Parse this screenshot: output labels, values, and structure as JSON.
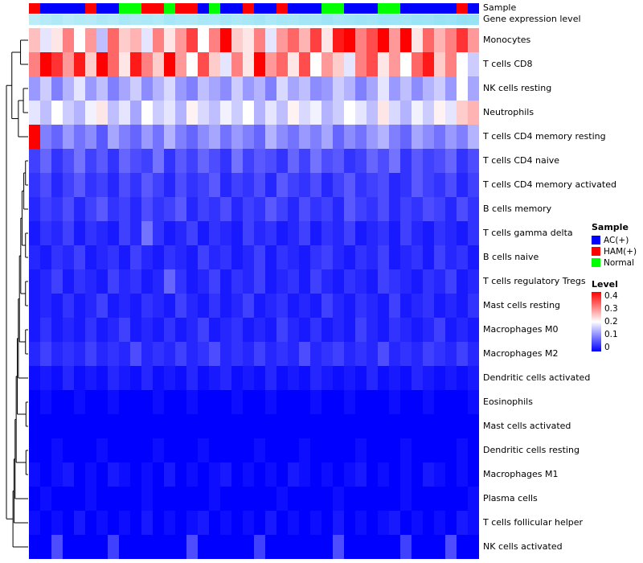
{
  "annotations": {
    "sample_label": "Sample",
    "gene_label": "Gene expression level",
    "gene_colormap": {
      "low": "#DFF6FD",
      "high": "#8ADEF4",
      "max": 0.5
    }
  },
  "legend": {
    "sample_title": "Sample",
    "sample_items": [
      {
        "label": "AC(+)",
        "color": "#0000FF"
      },
      {
        "label": "HAM(+)",
        "color": "#FF0000"
      },
      {
        "label": "Normal",
        "color": "#00FF00"
      }
    ],
    "level_title": "Level",
    "level_ticks": [
      "0.4",
      "0.3",
      "0.2",
      "0.1",
      "0"
    ],
    "level_colors": [
      "#FF0000",
      "#FFFFFF",
      "#0000FF"
    ]
  },
  "chart_data": {
    "type": "heatmap",
    "title": "",
    "rows": [
      "Monocytes",
      "T cells CD8",
      "NK cells resting",
      "Neutrophils",
      "T cells CD4 memory resting",
      "T cells CD4 naive",
      "T cells CD4 memory activated",
      "B cells memory",
      "T cells gamma delta",
      "B cells naive",
      "T cells regulatory Tregs",
      "Mast cells resting",
      "Macrophages M0",
      "Macrophages M2",
      "Dendritic cells activated",
      "Eosinophils",
      "Mast cells activated",
      "Dendritic cells resting",
      "Macrophages M1",
      "Plasma cells",
      "T cells follicular helper",
      "NK cells activated"
    ],
    "n_columns": 40,
    "value_range": [
      0,
      0.4
    ],
    "colormap": {
      "low": "#0000FF",
      "mid": "#FFFFFF",
      "high": "#FF0000",
      "mid_value": 0.2
    },
    "sample_group_colors": {
      "AC(+)": "#0000FF",
      "HAM(+)": "#FF0000",
      "Normal": "#00FF00"
    },
    "column_sample_groups": [
      "HAM(+)",
      "AC(+)",
      "AC(+)",
      "AC(+)",
      "AC(+)",
      "HAM(+)",
      "AC(+)",
      "AC(+)",
      "Normal",
      "Normal",
      "HAM(+)",
      "HAM(+)",
      "Normal",
      "HAM(+)",
      "HAM(+)",
      "AC(+)",
      "Normal",
      "AC(+)",
      "AC(+)",
      "HAM(+)",
      "AC(+)",
      "AC(+)",
      "HAM(+)",
      "AC(+)",
      "AC(+)",
      "AC(+)",
      "Normal",
      "Normal",
      "AC(+)",
      "AC(+)",
      "AC(+)",
      "Normal",
      "Normal",
      "AC(+)",
      "AC(+)",
      "AC(+)",
      "AC(+)",
      "AC(+)",
      "HAM(+)",
      "AC(+)"
    ],
    "gene_expression_level": [
      0.2,
      0.24,
      0.28,
      0.22,
      0.26,
      0.24,
      0.3,
      0.26,
      0.32,
      0.28,
      0.3,
      0.26,
      0.34,
      0.3,
      0.28,
      0.32,
      0.3,
      0.34,
      0.3,
      0.32,
      0.36,
      0.3,
      0.34,
      0.32,
      0.36,
      0.34,
      0.38,
      0.34,
      0.36,
      0.38,
      0.36,
      0.4,
      0.38,
      0.36,
      0.4,
      0.38,
      0.42,
      0.4,
      0.44,
      0.42
    ],
    "values": [
      [
        0.25,
        0.18,
        0.22,
        0.3,
        0.2,
        0.28,
        0.15,
        0.32,
        0.24,
        0.26,
        0.18,
        0.3,
        0.22,
        0.28,
        0.35,
        0.2,
        0.3,
        0.4,
        0.24,
        0.22,
        0.3,
        0.18,
        0.28,
        0.32,
        0.26,
        0.35,
        0.22,
        0.38,
        0.4,
        0.3,
        0.34,
        0.4,
        0.28,
        0.4,
        0.22,
        0.32,
        0.26,
        0.3,
        0.36,
        0.28
      ],
      [
        0.3,
        0.4,
        0.36,
        0.28,
        0.38,
        0.24,
        0.4,
        0.32,
        0.22,
        0.38,
        0.3,
        0.24,
        0.4,
        0.28,
        0.2,
        0.34,
        0.24,
        0.18,
        0.3,
        0.22,
        0.4,
        0.28,
        0.32,
        0.22,
        0.34,
        0.2,
        0.28,
        0.24,
        0.18,
        0.3,
        0.34,
        0.22,
        0.28,
        0.2,
        0.32,
        0.38,
        0.24,
        0.3,
        0.2,
        0.16
      ],
      [
        0.12,
        0.16,
        0.1,
        0.14,
        0.18,
        0.12,
        0.15,
        0.1,
        0.13,
        0.16,
        0.11,
        0.14,
        0.17,
        0.12,
        0.1,
        0.15,
        0.13,
        0.11,
        0.16,
        0.12,
        0.14,
        0.1,
        0.17,
        0.13,
        0.15,
        0.11,
        0.12,
        0.16,
        0.14,
        0.1,
        0.13,
        0.18,
        0.12,
        0.15,
        0.11,
        0.14,
        0.16,
        0.12,
        0.2,
        0.13
      ],
      [
        0.18,
        0.15,
        0.2,
        0.16,
        0.14,
        0.19,
        0.22,
        0.15,
        0.18,
        0.13,
        0.2,
        0.16,
        0.18,
        0.14,
        0.21,
        0.17,
        0.15,
        0.19,
        0.16,
        0.2,
        0.14,
        0.18,
        0.15,
        0.21,
        0.17,
        0.19,
        0.14,
        0.16,
        0.2,
        0.18,
        0.15,
        0.22,
        0.17,
        0.14,
        0.19,
        0.16,
        0.21,
        0.18,
        0.24,
        0.26
      ],
      [
        0.4,
        0.1,
        0.08,
        0.12,
        0.09,
        0.11,
        0.07,
        0.13,
        0.1,
        0.08,
        0.12,
        0.09,
        0.14,
        0.1,
        0.08,
        0.11,
        0.13,
        0.09,
        0.12,
        0.1,
        0.08,
        0.14,
        0.11,
        0.09,
        0.12,
        0.1,
        0.13,
        0.08,
        0.11,
        0.09,
        0.12,
        0.14,
        0.1,
        0.08,
        0.13,
        0.11,
        0.09,
        0.12,
        0.1,
        0.14
      ],
      [
        0.05,
        0.08,
        0.04,
        0.06,
        0.09,
        0.05,
        0.07,
        0.04,
        0.08,
        0.06,
        0.05,
        0.09,
        0.04,
        0.07,
        0.05,
        0.08,
        0.06,
        0.04,
        0.09,
        0.05,
        0.07,
        0.06,
        0.04,
        0.08,
        0.05,
        0.09,
        0.06,
        0.07,
        0.04,
        0.05,
        0.08,
        0.06,
        0.09,
        0.04,
        0.07,
        0.05,
        0.06,
        0.08,
        0.04,
        0.06
      ],
      [
        0.04,
        0.06,
        0.03,
        0.05,
        0.07,
        0.04,
        0.05,
        0.03,
        0.06,
        0.04,
        0.07,
        0.05,
        0.03,
        0.06,
        0.04,
        0.05,
        0.07,
        0.03,
        0.05,
        0.04,
        0.06,
        0.03,
        0.07,
        0.05,
        0.04,
        0.06,
        0.03,
        0.05,
        0.07,
        0.04,
        0.05,
        0.06,
        0.03,
        0.04,
        0.07,
        0.05,
        0.04,
        0.06,
        0.03,
        0.05
      ],
      [
        0.03,
        0.05,
        0.04,
        0.06,
        0.03,
        0.05,
        0.07,
        0.04,
        0.05,
        0.03,
        0.06,
        0.04,
        0.05,
        0.07,
        0.03,
        0.05,
        0.04,
        0.06,
        0.03,
        0.05,
        0.04,
        0.07,
        0.05,
        0.03,
        0.06,
        0.04,
        0.05,
        0.03,
        0.07,
        0.05,
        0.04,
        0.06,
        0.03,
        0.05,
        0.04,
        0.06,
        0.05,
        0.03,
        0.06,
        0.04
      ],
      [
        0.02,
        0.04,
        0.03,
        0.05,
        0.02,
        0.04,
        0.03,
        0.02,
        0.05,
        0.03,
        0.09,
        0.04,
        0.02,
        0.03,
        0.05,
        0.02,
        0.04,
        0.03,
        0.02,
        0.05,
        0.03,
        0.04,
        0.02,
        0.03,
        0.05,
        0.02,
        0.04,
        0.03,
        0.05,
        0.02,
        0.03,
        0.04,
        0.02,
        0.05,
        0.03,
        0.02,
        0.04,
        0.03,
        0.02,
        0.04
      ],
      [
        0.03,
        0.02,
        0.04,
        0.03,
        0.05,
        0.02,
        0.03,
        0.04,
        0.02,
        0.05,
        0.03,
        0.02,
        0.04,
        0.03,
        0.02,
        0.05,
        0.03,
        0.04,
        0.02,
        0.03,
        0.05,
        0.02,
        0.04,
        0.03,
        0.02,
        0.04,
        0.05,
        0.03,
        0.02,
        0.04,
        0.03,
        0.05,
        0.02,
        0.03,
        0.04,
        0.02,
        0.05,
        0.03,
        0.04,
        0.02
      ],
      [
        0.02,
        0.03,
        0.05,
        0.02,
        0.04,
        0.03,
        0.02,
        0.05,
        0.03,
        0.04,
        0.02,
        0.03,
        0.08,
        0.04,
        0.02,
        0.03,
        0.05,
        0.02,
        0.04,
        0.03,
        0.05,
        0.02,
        0.03,
        0.04,
        0.02,
        0.05,
        0.03,
        0.02,
        0.04,
        0.03,
        0.02,
        0.05,
        0.04,
        0.03,
        0.02,
        0.04,
        0.03,
        0.05,
        0.02,
        0.03
      ],
      [
        0.02,
        0.03,
        0.02,
        0.04,
        0.02,
        0.03,
        0.05,
        0.02,
        0.03,
        0.02,
        0.04,
        0.03,
        0.02,
        0.05,
        0.03,
        0.02,
        0.04,
        0.02,
        0.03,
        0.05,
        0.02,
        0.03,
        0.04,
        0.02,
        0.03,
        0.02,
        0.05,
        0.03,
        0.02,
        0.04,
        0.03,
        0.02,
        0.05,
        0.02,
        0.03,
        0.04,
        0.02,
        0.03,
        0.02,
        0.04
      ],
      [
        0.02,
        0.04,
        0.02,
        0.03,
        0.02,
        0.04,
        0.02,
        0.03,
        0.05,
        0.02,
        0.03,
        0.02,
        0.04,
        0.02,
        0.03,
        0.05,
        0.02,
        0.03,
        0.04,
        0.02,
        0.03,
        0.02,
        0.05,
        0.03,
        0.02,
        0.04,
        0.02,
        0.03,
        0.02,
        0.05,
        0.03,
        0.02,
        0.04,
        0.03,
        0.02,
        0.03,
        0.05,
        0.02,
        0.03,
        0.02
      ],
      [
        0.03,
        0.05,
        0.03,
        0.04,
        0.03,
        0.05,
        0.03,
        0.04,
        0.03,
        0.06,
        0.03,
        0.04,
        0.03,
        0.05,
        0.03,
        0.04,
        0.06,
        0.03,
        0.04,
        0.03,
        0.05,
        0.03,
        0.04,
        0.03,
        0.06,
        0.03,
        0.04,
        0.05,
        0.03,
        0.04,
        0.03,
        0.06,
        0.03,
        0.04,
        0.03,
        0.05,
        0.04,
        0.03,
        0.05,
        0.03
      ],
      [
        0.01,
        0.02,
        0.01,
        0.03,
        0.01,
        0.02,
        0.01,
        0.03,
        0.02,
        0.01,
        0.03,
        0.01,
        0.02,
        0.01,
        0.03,
        0.01,
        0.02,
        0.03,
        0.01,
        0.02,
        0.01,
        0.03,
        0.01,
        0.02,
        0.01,
        0.03,
        0.02,
        0.01,
        0.02,
        0.01,
        0.03,
        0.01,
        0.02,
        0.01,
        0.03,
        0.02,
        0.01,
        0.02,
        0.01,
        0.02
      ],
      [
        0,
        0.01,
        0,
        0,
        0.01,
        0,
        0,
        0.01,
        0,
        0,
        0,
        0.01,
        0,
        0,
        0.01,
        0,
        0,
        0,
        0.01,
        0,
        0,
        0.01,
        0,
        0,
        0,
        0.01,
        0,
        0,
        0.01,
        0,
        0,
        0,
        0.01,
        0,
        0,
        0.01,
        0,
        0,
        0,
        0.01
      ],
      [
        0,
        0,
        0,
        0,
        0,
        0,
        0,
        0,
        0,
        0,
        0,
        0,
        0,
        0,
        0,
        0,
        0,
        0,
        0,
        0,
        0,
        0,
        0,
        0,
        0,
        0,
        0,
        0,
        0,
        0,
        0,
        0,
        0,
        0,
        0,
        0,
        0,
        0,
        0,
        0
      ],
      [
        0,
        0,
        0.01,
        0,
        0,
        0,
        0.01,
        0,
        0,
        0,
        0,
        0.01,
        0,
        0,
        0,
        0.01,
        0,
        0,
        0,
        0,
        0.01,
        0,
        0,
        0,
        0.01,
        0,
        0,
        0,
        0,
        0.01,
        0,
        0,
        0,
        0.01,
        0,
        0,
        0,
        0,
        0.01,
        0
      ],
      [
        0.01,
        0,
        0.01,
        0.02,
        0,
        0.01,
        0,
        0.02,
        0.01,
        0,
        0.01,
        0,
        0.02,
        0,
        0.01,
        0,
        0.01,
        0.02,
        0,
        0.01,
        0,
        0.01,
        0,
        0.02,
        0.01,
        0,
        0.01,
        0,
        0.01,
        0.02,
        0,
        0.01,
        0,
        0.01,
        0,
        0.02,
        0.01,
        0,
        0.01,
        0
      ],
      [
        0,
        0.01,
        0,
        0,
        0,
        0.01,
        0,
        0,
        0,
        0,
        0.01,
        0,
        0,
        0,
        0,
        0,
        0.01,
        0,
        0,
        0,
        0,
        0,
        0.01,
        0,
        0,
        0,
        0,
        0.01,
        0,
        0,
        0,
        0,
        0,
        0.01,
        0,
        0,
        0,
        0,
        0,
        0.01
      ],
      [
        0.01,
        0,
        0.01,
        0,
        0.02,
        0,
        0.01,
        0,
        0.01,
        0,
        0.02,
        0,
        0.01,
        0,
        0.01,
        0.02,
        0,
        0.01,
        0,
        0.01,
        0,
        0.02,
        0,
        0.01,
        0,
        0.01,
        0,
        0.02,
        0,
        0.01,
        0,
        0.01,
        0.02,
        0,
        0.01,
        0,
        0.01,
        0,
        0.02,
        0.01
      ],
      [
        0,
        0,
        0.06,
        0,
        0,
        0,
        0,
        0.05,
        0,
        0,
        0,
        0,
        0,
        0,
        0.06,
        0,
        0,
        0,
        0,
        0,
        0.05,
        0,
        0,
        0,
        0,
        0,
        0,
        0.06,
        0,
        0,
        0,
        0,
        0,
        0.05,
        0,
        0,
        0,
        0.06,
        0,
        0
      ]
    ]
  }
}
